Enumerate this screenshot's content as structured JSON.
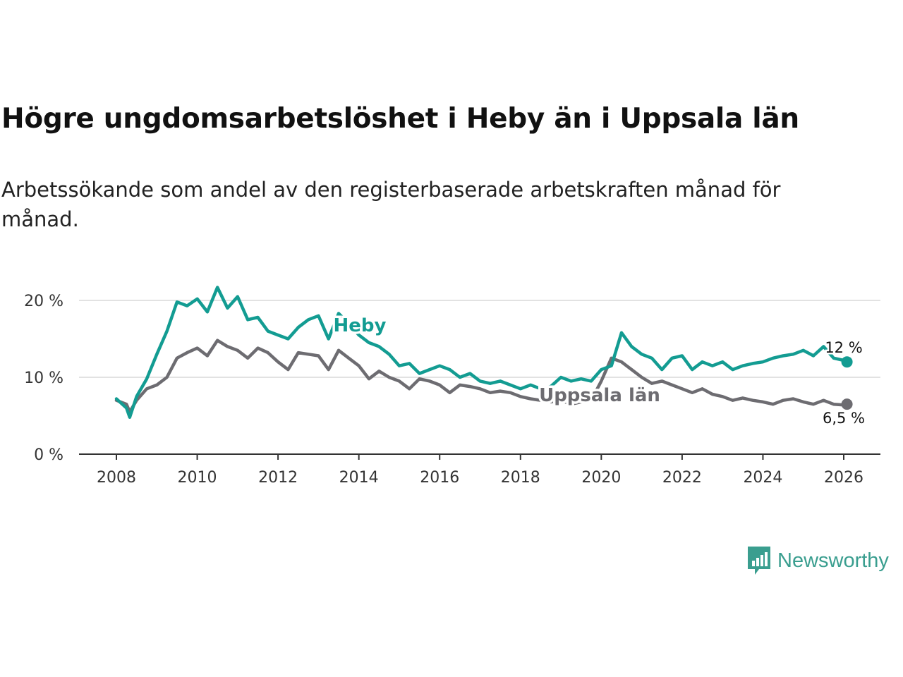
{
  "title": "Högre ungdomsarbetslöshet i Heby än i Uppsala län",
  "subtitle": "Arbetssökande som andel av den registerbaserade arbetskraften månad för månad.",
  "brand": {
    "name": "Newsworthy",
    "icon": "newsworthy-logo-icon",
    "color": "#3a9e8f"
  },
  "chart_data": {
    "type": "line",
    "title": "Högre ungdomsarbetslöshet i Heby än i Uppsala län",
    "xlabel": "",
    "ylabel": "",
    "xlim": [
      2007.7,
      2027.0
    ],
    "ylim": [
      0,
      22
    ],
    "xticks": [
      2008,
      2010,
      2012,
      2014,
      2016,
      2018,
      2020,
      2022,
      2024,
      2026
    ],
    "xtick_labels": [
      "2008",
      "2010",
      "2012",
      "2014",
      "2016",
      "2018",
      "2020",
      "2022",
      "2024",
      "2026"
    ],
    "yticks": [
      0,
      10,
      20
    ],
    "ytick_labels": [
      "0 %",
      "10 %",
      "20 %"
    ],
    "grid": true,
    "series": [
      {
        "name": "Heby",
        "color": "#139c92",
        "end_label": "12 %",
        "x": [
          2008.0,
          2008.25,
          2008.33,
          2008.5,
          2008.75,
          2009.0,
          2009.25,
          2009.5,
          2009.75,
          2010.0,
          2010.25,
          2010.5,
          2010.75,
          2011.0,
          2011.25,
          2011.5,
          2011.75,
          2012.0,
          2012.25,
          2012.5,
          2012.75,
          2013.0,
          2013.25,
          2013.5,
          2013.75,
          2014.0,
          2014.25,
          2014.5,
          2014.75,
          2015.0,
          2015.25,
          2015.5,
          2015.75,
          2016.0,
          2016.25,
          2016.5,
          2016.75,
          2017.0,
          2017.25,
          2017.5,
          2017.75,
          2018.0,
          2018.25,
          2018.5,
          2018.75,
          2019.0,
          2019.25,
          2019.5,
          2019.75,
          2020.0,
          2020.25,
          2020.5,
          2020.75,
          2021.0,
          2021.25,
          2021.5,
          2021.75,
          2022.0,
          2022.25,
          2022.5,
          2022.75,
          2023.0,
          2023.25,
          2023.5,
          2023.75,
          2024.0,
          2024.25,
          2024.5,
          2024.75,
          2025.0,
          2025.25,
          2025.5,
          2025.75,
          2026.0,
          2026.08
        ],
        "values": [
          7.2,
          6.0,
          4.8,
          7.5,
          9.8,
          13.0,
          16.0,
          19.8,
          19.3,
          20.2,
          18.5,
          21.7,
          19.0,
          20.5,
          17.5,
          17.8,
          16.0,
          15.5,
          15.0,
          16.5,
          17.5,
          18.0,
          15.0,
          18.3,
          17.0,
          15.5,
          14.5,
          14.0,
          13.0,
          11.5,
          11.8,
          10.5,
          11.0,
          11.5,
          11.0,
          10.0,
          10.5,
          9.5,
          9.2,
          9.5,
          9.0,
          8.5,
          9.0,
          8.5,
          8.8,
          10.0,
          9.5,
          9.8,
          9.5,
          11.0,
          11.5,
          15.8,
          14.0,
          13.0,
          12.5,
          11.0,
          12.5,
          12.8,
          11.0,
          12.0,
          11.5,
          12.0,
          11.0,
          11.5,
          11.8,
          12.0,
          12.5,
          12.8,
          13.0,
          13.5,
          12.8,
          14.0,
          12.5,
          12.2,
          12.0
        ]
      },
      {
        "name": "Uppsala län",
        "color": "#6d6c71",
        "end_label": "6,5 %",
        "x": [
          2008.0,
          2008.25,
          2008.33,
          2008.5,
          2008.75,
          2009.0,
          2009.25,
          2009.5,
          2009.75,
          2010.0,
          2010.25,
          2010.5,
          2010.75,
          2011.0,
          2011.25,
          2011.5,
          2011.75,
          2012.0,
          2012.25,
          2012.5,
          2012.75,
          2013.0,
          2013.25,
          2013.5,
          2013.75,
          2014.0,
          2014.25,
          2014.5,
          2014.75,
          2015.0,
          2015.25,
          2015.5,
          2015.75,
          2016.0,
          2016.25,
          2016.5,
          2016.75,
          2017.0,
          2017.25,
          2017.5,
          2017.75,
          2018.0,
          2018.25,
          2018.5,
          2018.75,
          2019.0,
          2019.25,
          2019.5,
          2019.75,
          2020.0,
          2020.25,
          2020.5,
          2020.75,
          2021.0,
          2021.25,
          2021.5,
          2021.75,
          2022.0,
          2022.25,
          2022.5,
          2022.75,
          2023.0,
          2023.25,
          2023.5,
          2023.75,
          2024.0,
          2024.25,
          2024.5,
          2024.75,
          2025.0,
          2025.25,
          2025.5,
          2025.75,
          2026.0,
          2026.08
        ],
        "values": [
          7.0,
          6.5,
          5.5,
          7.0,
          8.5,
          9.0,
          10.0,
          12.5,
          13.2,
          13.8,
          12.8,
          14.8,
          14.0,
          13.5,
          12.5,
          13.8,
          13.2,
          12.0,
          11.0,
          13.2,
          13.0,
          12.8,
          11.0,
          13.5,
          12.5,
          11.5,
          9.8,
          10.8,
          10.0,
          9.5,
          8.5,
          9.8,
          9.5,
          9.0,
          8.0,
          9.0,
          8.8,
          8.5,
          8.0,
          8.2,
          8.0,
          7.5,
          7.2,
          7.0,
          6.8,
          7.0,
          6.5,
          6.8,
          7.0,
          9.5,
          12.5,
          12.0,
          11.0,
          10.0,
          9.2,
          9.5,
          9.0,
          8.5,
          8.0,
          8.5,
          7.8,
          7.5,
          7.0,
          7.3,
          7.0,
          6.8,
          6.5,
          7.0,
          7.2,
          6.8,
          6.5,
          7.0,
          6.5,
          6.4,
          6.5
        ]
      }
    ]
  }
}
